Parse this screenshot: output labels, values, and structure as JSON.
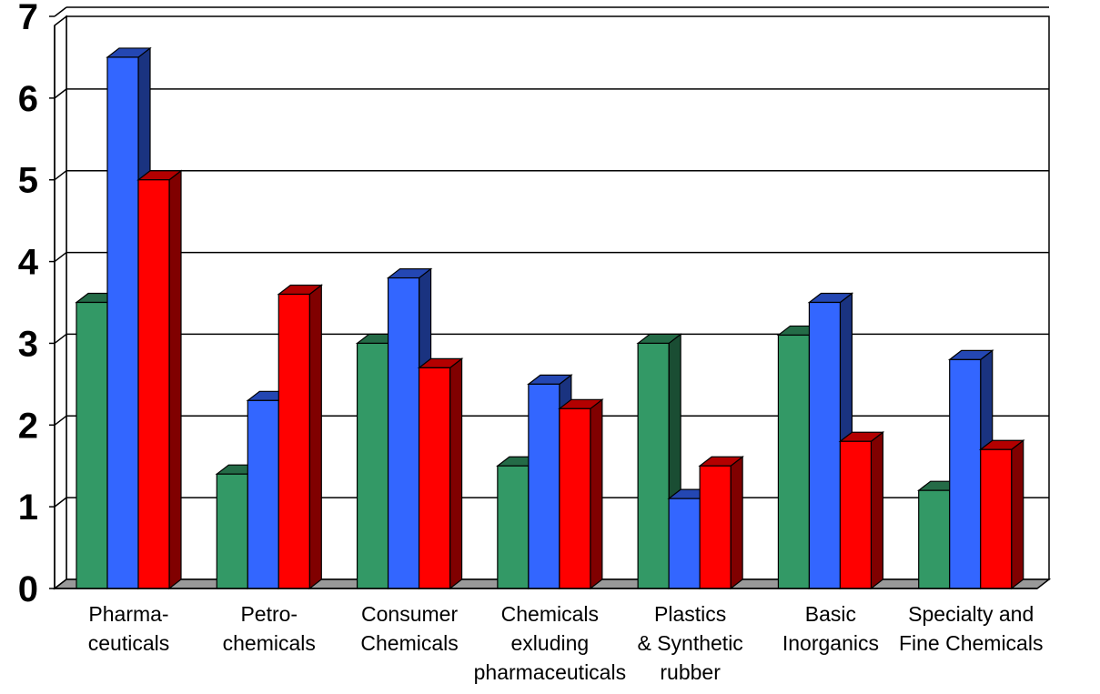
{
  "chart_data": {
    "type": "bar",
    "categories": [
      [
        "Pharma-",
        "ceuticals"
      ],
      [
        "Petro-",
        "chemicals"
      ],
      [
        "Consumer",
        "Chemicals"
      ],
      [
        "Chemicals",
        "exluding",
        "pharmaceuticals"
      ],
      [
        "Plastics",
        "& Synthetic",
        "rubber"
      ],
      [
        "Basic",
        "Inorganics"
      ],
      [
        "Specialty and",
        "Fine Chemicals"
      ]
    ],
    "series": [
      {
        "color": "#339966",
        "values": [
          3.5,
          1.4,
          3.0,
          1.5,
          3.0,
          3.1,
          1.2
        ]
      },
      {
        "color": "#3366FF",
        "values": [
          6.5,
          2.3,
          3.8,
          2.5,
          1.1,
          3.5,
          2.8
        ]
      },
      {
        "color": "#FF0000",
        "values": [
          5.0,
          3.6,
          2.7,
          2.2,
          1.5,
          1.8,
          1.7
        ]
      }
    ],
    "yticks": [
      "0",
      "1",
      "2",
      "3",
      "4",
      "5",
      "6",
      "7"
    ],
    "ylim": [
      0,
      7
    ],
    "grid": true,
    "legend": "none",
    "style": "3d-clustered-bar"
  }
}
